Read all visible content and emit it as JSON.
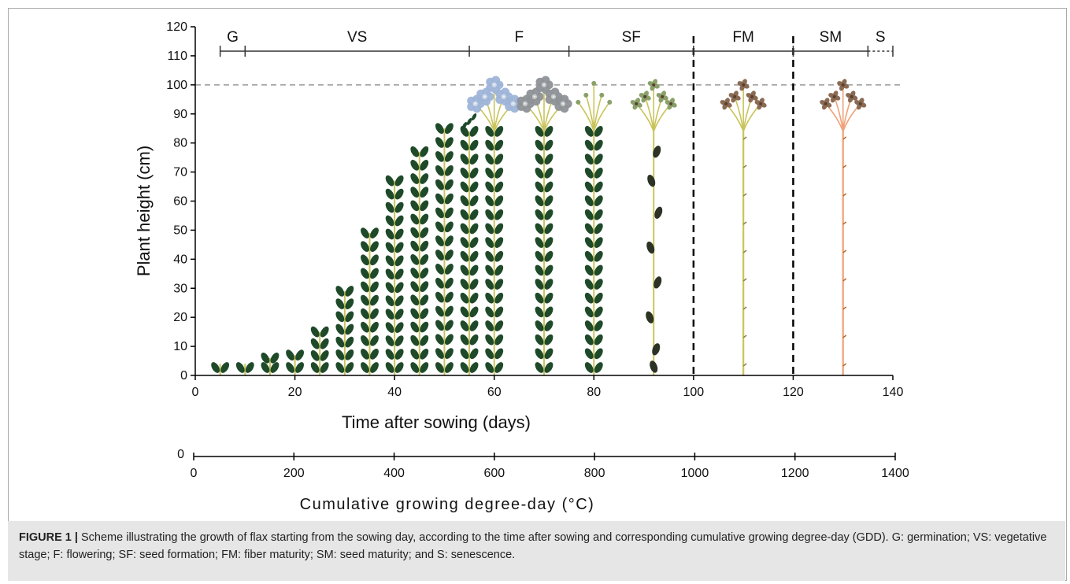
{
  "chart_data": {
    "type": "scatter",
    "title": "",
    "ylabel": "Plant height (cm)",
    "xlabel": "Time after sowing (days)",
    "secondary_xlabel": "Cumulative growing degree-day (°C)",
    "xlim": [
      0,
      140
    ],
    "ylim": [
      0,
      120
    ],
    "secondary_xlim": [
      0,
      1400
    ],
    "x_ticks": [
      "0",
      "20",
      "40",
      "60",
      "80",
      "100",
      "120",
      "140"
    ],
    "y_ticks": [
      "0",
      "10",
      "20",
      "30",
      "40",
      "50",
      "60",
      "70",
      "80",
      "90",
      "100",
      "110",
      "120"
    ],
    "secondary_x_ticks": [
      "0",
      "200",
      "400",
      "600",
      "800",
      "1000",
      "1200",
      "1400"
    ],
    "secondary_y_tick": "0",
    "reference_height": 100,
    "stage_boundaries": [
      100,
      120
    ],
    "stages": [
      {
        "label": "G",
        "start": 5,
        "end": 10
      },
      {
        "label": "VS",
        "start": 10,
        "end": 55
      },
      {
        "label": "F",
        "start": 55,
        "end": 75
      },
      {
        "label": "SF",
        "start": 75,
        "end": 100
      },
      {
        "label": "FM",
        "start": 100,
        "end": 120
      },
      {
        "label": "SM",
        "start": 120,
        "end": 135
      },
      {
        "label": "S",
        "start": 135,
        "end": 140
      }
    ],
    "series": [
      {
        "values": [
          {
            "x": 5,
            "y": 4,
            "stage": "leafy"
          },
          {
            "x": 10,
            "y": 4,
            "stage": "leafy"
          },
          {
            "x": 15,
            "y": 6,
            "stage": "leafy"
          },
          {
            "x": 20,
            "y": 7,
            "stage": "leafy"
          },
          {
            "x": 25,
            "y": 15,
            "stage": "leafy"
          },
          {
            "x": 30,
            "y": 29,
            "stage": "leafy"
          },
          {
            "x": 35,
            "y": 49,
            "stage": "leafy"
          },
          {
            "x": 40,
            "y": 67,
            "stage": "leafy"
          },
          {
            "x": 45,
            "y": 77,
            "stage": "leafy"
          },
          {
            "x": 50,
            "y": 85,
            "stage": "leafy"
          },
          {
            "x": 55,
            "y": 90,
            "stage": "budding"
          },
          {
            "x": 60,
            "y": 100,
            "stage": "flowering-blue"
          },
          {
            "x": 70,
            "y": 100,
            "stage": "flowering-grey"
          },
          {
            "x": 80,
            "y": 100,
            "stage": "pods-forming"
          },
          {
            "x": 92,
            "y": 100,
            "stage": "seed-formation"
          },
          {
            "x": 110,
            "y": 100,
            "stage": "fiber-maturity"
          },
          {
            "x": 130,
            "y": 100,
            "stage": "seed-maturity"
          }
        ]
      }
    ]
  },
  "caption": {
    "label": "FIGURE 1 |",
    "text": " Scheme illustrating the growth of flax starting from the sowing day, according to the time after sowing and corresponding cumulative growing degree-day (GDD). G: germination; VS: vegetative stage; F: flowering; SF: seed formation; FM: fiber maturity; SM: seed maturity; and S: senescence."
  },
  "colors": {
    "leaf": "#1f4a2a",
    "stem_green": "#c9c45a",
    "stem_orange": "#f0a27a",
    "flower_blue": "#9eb4d8",
    "flower_grey": "#8e9298",
    "pod_green": "#8aa06a",
    "capsule_brown": "#8a6a52",
    "reference_line": "#999999",
    "boundary_line": "#000000"
  }
}
